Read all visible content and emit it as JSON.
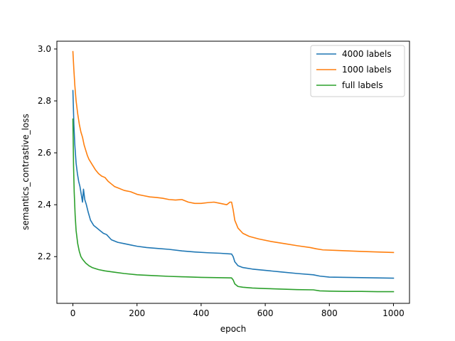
{
  "chart_data": {
    "type": "line",
    "xlabel": "epoch",
    "ylabel": "semantics_contrastive_loss",
    "xlim": [
      -50,
      1050
    ],
    "ylim": [
      2.02,
      3.03
    ],
    "xticks": [
      0,
      200,
      400,
      600,
      800,
      1000
    ],
    "yticks": [
      2.2,
      2.4,
      2.6,
      2.8,
      3.0
    ],
    "xtick_labels": [
      "0",
      "200",
      "400",
      "600",
      "800",
      "1000"
    ],
    "ytick_labels": [
      "2.2",
      "2.4",
      "2.6",
      "2.8",
      "3.0"
    ],
    "grid": false,
    "legend_position": "top-right",
    "series": [
      {
        "name": "4000 labels",
        "color": "#1f77b4",
        "points": [
          [
            0,
            2.84
          ],
          [
            3,
            2.71
          ],
          [
            6,
            2.63
          ],
          [
            10,
            2.56
          ],
          [
            14,
            2.52
          ],
          [
            18,
            2.49
          ],
          [
            22,
            2.47
          ],
          [
            26,
            2.44
          ],
          [
            30,
            2.41
          ],
          [
            33,
            2.46
          ],
          [
            37,
            2.42
          ],
          [
            42,
            2.4
          ],
          [
            48,
            2.37
          ],
          [
            55,
            2.34
          ],
          [
            65,
            2.32
          ],
          [
            75,
            2.31
          ],
          [
            85,
            2.3
          ],
          [
            95,
            2.29
          ],
          [
            105,
            2.285
          ],
          [
            120,
            2.265
          ],
          [
            140,
            2.255
          ],
          [
            160,
            2.25
          ],
          [
            180,
            2.245
          ],
          [
            200,
            2.24
          ],
          [
            230,
            2.235
          ],
          [
            260,
            2.232
          ],
          [
            300,
            2.228
          ],
          [
            340,
            2.222
          ],
          [
            380,
            2.218
          ],
          [
            420,
            2.215
          ],
          [
            460,
            2.213
          ],
          [
            495,
            2.21
          ],
          [
            500,
            2.2
          ],
          [
            505,
            2.18
          ],
          [
            515,
            2.165
          ],
          [
            530,
            2.158
          ],
          [
            560,
            2.152
          ],
          [
            600,
            2.147
          ],
          [
            650,
            2.141
          ],
          [
            700,
            2.135
          ],
          [
            750,
            2.13
          ],
          [
            770,
            2.125
          ],
          [
            800,
            2.121
          ],
          [
            850,
            2.12
          ],
          [
            900,
            2.119
          ],
          [
            950,
            2.118
          ],
          [
            1000,
            2.117
          ]
        ]
      },
      {
        "name": "1000 labels",
        "color": "#ff7f0e",
        "points": [
          [
            0,
            2.99
          ],
          [
            3,
            2.92
          ],
          [
            6,
            2.86
          ],
          [
            10,
            2.8
          ],
          [
            15,
            2.75
          ],
          [
            20,
            2.71
          ],
          [
            25,
            2.68
          ],
          [
            30,
            2.66
          ],
          [
            35,
            2.63
          ],
          [
            40,
            2.61
          ],
          [
            45,
            2.59
          ],
          [
            50,
            2.575
          ],
          [
            60,
            2.555
          ],
          [
            70,
            2.535
          ],
          [
            80,
            2.52
          ],
          [
            90,
            2.51
          ],
          [
            100,
            2.505
          ],
          [
            110,
            2.49
          ],
          [
            120,
            2.48
          ],
          [
            130,
            2.47
          ],
          [
            140,
            2.465
          ],
          [
            160,
            2.455
          ],
          [
            180,
            2.45
          ],
          [
            200,
            2.44
          ],
          [
            220,
            2.435
          ],
          [
            240,
            2.43
          ],
          [
            260,
            2.428
          ],
          [
            280,
            2.425
          ],
          [
            300,
            2.42
          ],
          [
            320,
            2.418
          ],
          [
            340,
            2.42
          ],
          [
            360,
            2.41
          ],
          [
            380,
            2.405
          ],
          [
            400,
            2.405
          ],
          [
            420,
            2.408
          ],
          [
            440,
            2.41
          ],
          [
            460,
            2.405
          ],
          [
            480,
            2.4
          ],
          [
            490,
            2.41
          ],
          [
            495,
            2.41
          ],
          [
            500,
            2.38
          ],
          [
            505,
            2.34
          ],
          [
            515,
            2.31
          ],
          [
            530,
            2.29
          ],
          [
            550,
            2.278
          ],
          [
            580,
            2.268
          ],
          [
            620,
            2.258
          ],
          [
            660,
            2.25
          ],
          [
            700,
            2.242
          ],
          [
            740,
            2.235
          ],
          [
            760,
            2.23
          ],
          [
            780,
            2.226
          ],
          [
            820,
            2.224
          ],
          [
            860,
            2.222
          ],
          [
            900,
            2.22
          ],
          [
            950,
            2.218
          ],
          [
            1000,
            2.216
          ]
        ]
      },
      {
        "name": "full labels",
        "color": "#2ca02c",
        "points": [
          [
            0,
            2.73
          ],
          [
            2,
            2.55
          ],
          [
            4,
            2.45
          ],
          [
            7,
            2.36
          ],
          [
            10,
            2.3
          ],
          [
            15,
            2.25
          ],
          [
            20,
            2.22
          ],
          [
            25,
            2.2
          ],
          [
            30,
            2.19
          ],
          [
            40,
            2.175
          ],
          [
            50,
            2.165
          ],
          [
            60,
            2.158
          ],
          [
            80,
            2.15
          ],
          [
            100,
            2.145
          ],
          [
            130,
            2.14
          ],
          [
            160,
            2.135
          ],
          [
            200,
            2.13
          ],
          [
            250,
            2.127
          ],
          [
            300,
            2.124
          ],
          [
            350,
            2.122
          ],
          [
            400,
            2.12
          ],
          [
            450,
            2.119
          ],
          [
            495,
            2.118
          ],
          [
            500,
            2.11
          ],
          [
            505,
            2.095
          ],
          [
            515,
            2.085
          ],
          [
            530,
            2.082
          ],
          [
            560,
            2.079
          ],
          [
            600,
            2.077
          ],
          [
            650,
            2.075
          ],
          [
            700,
            2.073
          ],
          [
            750,
            2.072
          ],
          [
            770,
            2.068
          ],
          [
            800,
            2.067
          ],
          [
            850,
            2.066
          ],
          [
            900,
            2.066
          ],
          [
            950,
            2.065
          ],
          [
            1000,
            2.065
          ]
        ]
      }
    ]
  }
}
